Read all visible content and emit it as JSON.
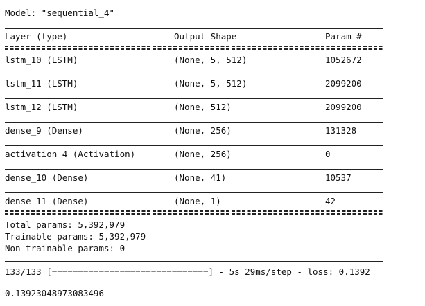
{
  "model_title": "Model: \"sequential_4\"",
  "header": {
    "layer": "Layer (type)",
    "output_shape": "Output Shape",
    "param": "Param #"
  },
  "layers": [
    {
      "name": "lstm_10 (LSTM)",
      "shape": "(None, 5, 512)",
      "params": "1052672"
    },
    {
      "name": "lstm_11 (LSTM)",
      "shape": "(None, 5, 512)",
      "params": "2099200"
    },
    {
      "name": "lstm_12 (LSTM)",
      "shape": "(None, 512)",
      "params": "2099200"
    },
    {
      "name": "dense_9 (Dense)",
      "shape": "(None, 256)",
      "params": "131328"
    },
    {
      "name": "activation_4 (Activation)",
      "shape": "(None, 256)",
      "params": "0"
    },
    {
      "name": "dense_10 (Dense)",
      "shape": "(None, 41)",
      "params": "10537"
    },
    {
      "name": "dense_11 (Dense)",
      "shape": "(None, 1)",
      "params": "42"
    }
  ],
  "summary": {
    "total": "Total params: 5,392,979",
    "trainable": "Trainable params: 5,392,979",
    "non_trainable": "Non-trainable params: 0"
  },
  "progress_line": "133/133 [==============================] - 5s 29ms/step - loss: 0.1392",
  "result": "0.13923048973083496"
}
